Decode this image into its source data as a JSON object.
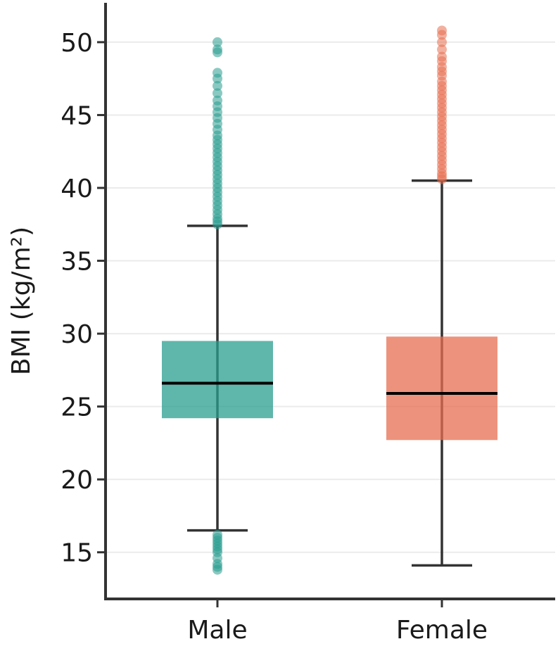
{
  "chart_data": {
    "type": "boxplot",
    "title": "",
    "xlabel": "",
    "ylabel": "BMI (kg/m²)",
    "ylim": [
      11.8,
      52.7
    ],
    "yticks": [
      15,
      20,
      25,
      30,
      35,
      40,
      45,
      50
    ],
    "grid": "horizontal",
    "categories": [
      "Male",
      "Female"
    ],
    "series": [
      {
        "name": "Male",
        "color": "#2a9d8f",
        "whisker_low": 16.5,
        "q1": 24.2,
        "median": 26.6,
        "q3": 29.5,
        "whisker_high": 37.4,
        "outliers_low": [
          13.8,
          14.0,
          14.2,
          14.6,
          15.0,
          15.2,
          15.4,
          15.6,
          15.8,
          16.0,
          16.2
        ],
        "outliers_high": [
          37.5,
          37.7,
          37.9,
          38.2,
          38.5,
          38.8,
          39.1,
          39.4,
          39.7,
          40.0,
          40.3,
          40.6,
          40.9,
          41.2,
          41.5,
          41.8,
          42.1,
          42.4,
          42.7,
          43.0,
          43.3,
          43.6,
          44.0,
          44.4,
          44.8,
          45.2,
          45.6,
          46.0,
          46.5,
          47.0,
          47.5,
          47.9,
          49.3,
          49.5,
          50.0
        ]
      },
      {
        "name": "Female",
        "color": "#e76f51",
        "whisker_low": 14.1,
        "q1": 22.7,
        "median": 25.9,
        "q3": 29.8,
        "whisker_high": 40.5,
        "outliers_low": [],
        "outliers_high": [
          40.6,
          40.8,
          41.0,
          41.3,
          41.6,
          41.9,
          42.2,
          42.5,
          42.8,
          43.1,
          43.4,
          43.7,
          44.0,
          44.3,
          44.6,
          44.9,
          45.2,
          45.5,
          45.8,
          46.1,
          46.4,
          46.7,
          47.0,
          47.3,
          47.7,
          48.0,
          48.3,
          48.7,
          49.0,
          49.5,
          50.0,
          50.5,
          50.8
        ]
      }
    ]
  }
}
